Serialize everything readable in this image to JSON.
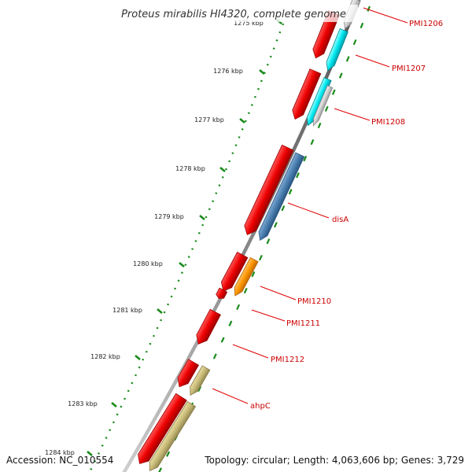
{
  "title": "Proteus mirabilis HI4320, complete genome",
  "footer": {
    "accession": "Accession: NC_010554",
    "summary": "Topology: circular; Length: 4,063,606 bp; Genes: 3,729"
  },
  "colors": {
    "gene_red": "#ee0000",
    "cyan": "#00e8f0",
    "light_gray": "#cfcfcf",
    "steel_blue": "#4a7fb0",
    "orange": "#ff9500",
    "khaki": "#c8bb78",
    "backbone": "#8a8a8a",
    "tick_green": "#1a8a1a",
    "label_red": "#cc0000"
  },
  "ticks": [
    "1275 kbp",
    "1276 kbp",
    "1277 kbp",
    "1278 kbp",
    "1279 kbp",
    "1280 kbp",
    "1281 kbp",
    "1282 kbp",
    "1283 kbp",
    "1284 kbp"
  ],
  "genes": [
    {
      "label": "PMI1206"
    },
    {
      "label": "PMI1207"
    },
    {
      "label": "PMI1208"
    },
    {
      "label": "disA"
    },
    {
      "label": "PMI1210"
    },
    {
      "label": "PMI1211"
    },
    {
      "label": "PMI1212"
    },
    {
      "label": "ahpC"
    }
  ]
}
